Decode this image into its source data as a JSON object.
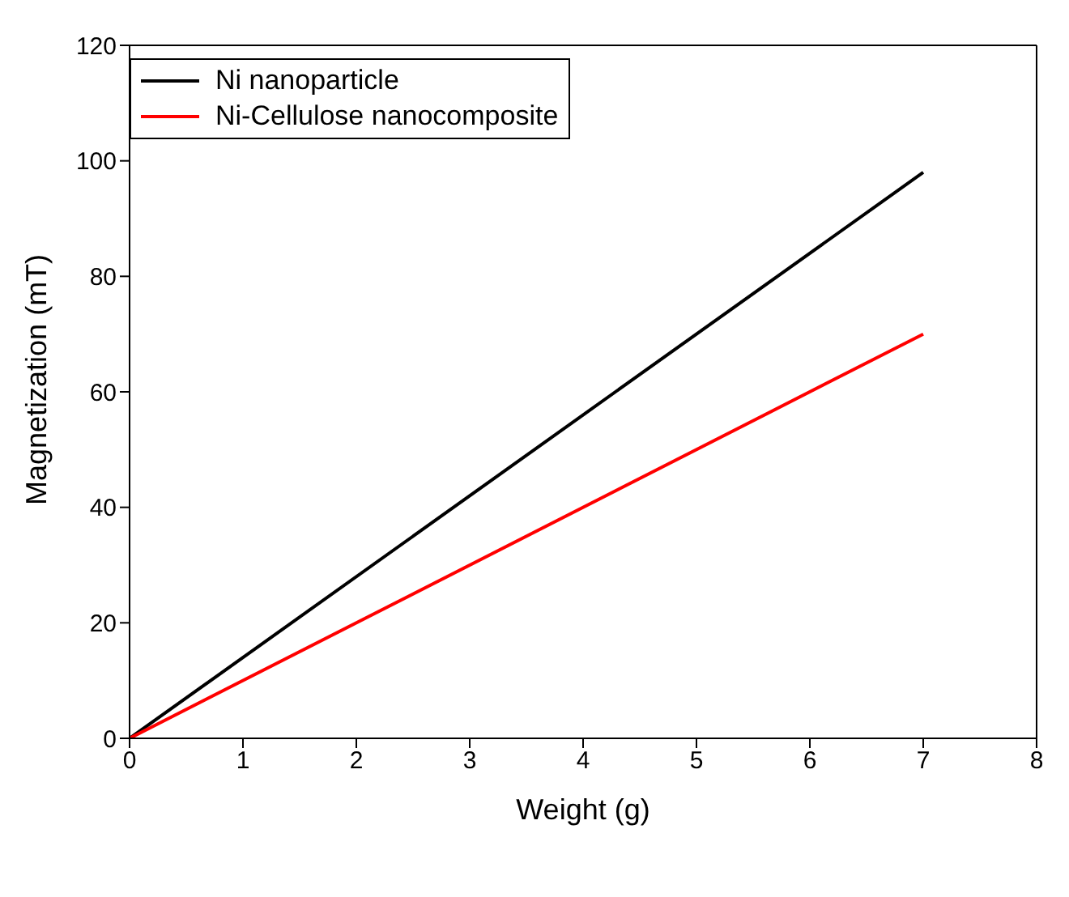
{
  "chart_data": {
    "type": "line",
    "xlabel": "Weight (g)",
    "ylabel": "Magnetization (mT)",
    "x": [
      0,
      7
    ],
    "series": [
      {
        "name": "Ni nanoparticle",
        "color": "#000000",
        "values": [
          0,
          98
        ]
      },
      {
        "name": "Ni-Cellulose nanocomposite",
        "color": "#ff0000",
        "values": [
          0,
          70
        ]
      }
    ],
    "xlim": [
      0,
      8
    ],
    "xticks": [
      0,
      1,
      2,
      3,
      4,
      5,
      6,
      7,
      8
    ],
    "ylim": [
      0,
      120
    ],
    "yticks": [
      0,
      20,
      40,
      60,
      80,
      100,
      120
    ],
    "grid": false,
    "legend": "top left",
    "marker": "none",
    "line_style": "solid"
  }
}
